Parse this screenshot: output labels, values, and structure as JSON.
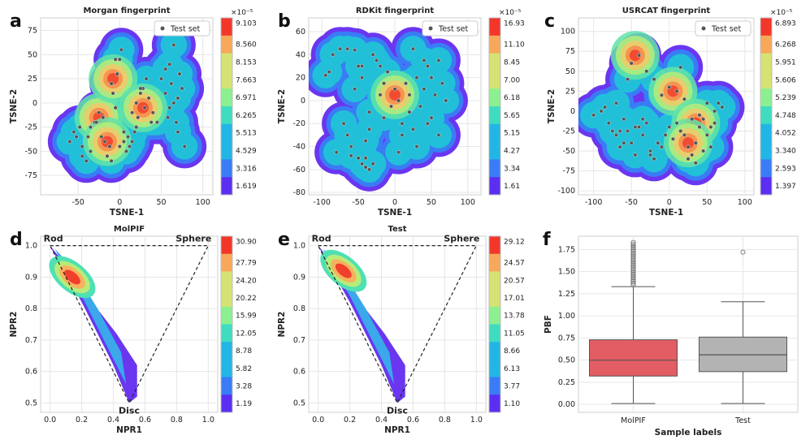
{
  "figure": {
    "panels": [
      {
        "id": "a",
        "type": "tsne",
        "label": "a",
        "title": "Morgan fingerprint",
        "xlabel": "TSNE-1",
        "ylabel": "TSNE-2",
        "xticks": [
          -50,
          0,
          50,
          100
        ],
        "yticks": [
          -75,
          -50,
          -25,
          0,
          25,
          50,
          75
        ],
        "xlim": [
          -95,
          112
        ],
        "ylim": [
          -95,
          88
        ],
        "legend": "Test set",
        "cb_exp": "×10⁻⁵",
        "cb_ticks": [
          "9.103",
          "8.560",
          "8.153",
          "7.663",
          "6.971",
          "6.265",
          "5.513",
          "4.529",
          "3.316",
          "1.619"
        ]
      },
      {
        "id": "b",
        "type": "tsne",
        "label": "b",
        "title": "RDKit fingerprint",
        "xlabel": "TSNE-1",
        "ylabel": "TSNE-2",
        "xticks": [
          -100,
          -50,
          0,
          50,
          100
        ],
        "yticks": [
          -80,
          -60,
          -40,
          -20,
          0,
          20,
          40,
          60
        ],
        "xlim": [
          -118,
          118
        ],
        "ylim": [
          -82,
          72
        ],
        "legend": "Test set",
        "cb_exp": "×10⁻⁵",
        "cb_ticks": [
          "16.93",
          "11.10",
          "8.45",
          "7.00",
          "6.18",
          "5.65",
          "5.15",
          "4.27",
          "3.34",
          "1.61"
        ]
      },
      {
        "id": "c",
        "type": "tsne",
        "label": "c",
        "title": "USRCAT fingerprint",
        "xlabel": "TSNE-1",
        "ylabel": "TSNE-2",
        "xticks": [
          -100,
          -50,
          0,
          50,
          100
        ],
        "yticks": [
          -100,
          -75,
          -50,
          -25,
          0,
          25,
          50,
          75,
          100
        ],
        "xlim": [
          -120,
          112
        ],
        "ylim": [
          -105,
          117
        ],
        "legend": "Test set",
        "cb_exp": "×10⁻⁵",
        "cb_ticks": [
          "6.893",
          "6.268",
          "5.951",
          "5.606",
          "5.239",
          "4.748",
          "4.052",
          "3.340",
          "2.593",
          "1.397"
        ]
      },
      {
        "id": "d",
        "type": "pmi",
        "label": "d",
        "title": "MolPIF",
        "xlabel": "NPR1",
        "ylabel": "NPR2",
        "xticks": [
          "0.0",
          "0.2",
          "0.4",
          "0.6",
          "0.8",
          "1.0"
        ],
        "yticks": [
          "0.5",
          "0.6",
          "0.7",
          "0.8",
          "0.9",
          "1.0"
        ],
        "xlim": [
          -0.06,
          1.06
        ],
        "ylim": [
          0.47,
          1.03
        ],
        "corners": {
          "rod": "Rod",
          "sphere": "Sphere",
          "disc": "Disc"
        },
        "cb_ticks": [
          "30.90",
          "27.79",
          "24.20",
          "20.22",
          "15.99",
          "12.05",
          "8.78",
          "5.82",
          "3.28",
          "1.19"
        ]
      },
      {
        "id": "e",
        "type": "pmi",
        "label": "e",
        "title": "Test",
        "xlabel": "NPR1",
        "ylabel": "NPR2",
        "xticks": [
          "0.0",
          "0.2",
          "0.4",
          "0.6",
          "0.8",
          "1.0"
        ],
        "yticks": [
          "0.5",
          "0.6",
          "0.7",
          "0.8",
          "0.9",
          "1.0"
        ],
        "xlim": [
          -0.06,
          1.06
        ],
        "ylim": [
          0.47,
          1.03
        ],
        "corners": {
          "rod": "Rod",
          "sphere": "Sphere",
          "disc": "Disc"
        },
        "cb_ticks": [
          "29.12",
          "24.57",
          "20.57",
          "17.01",
          "13.78",
          "11.05",
          "8.66",
          "6.13",
          "3.77",
          "1.10"
        ]
      },
      {
        "id": "f",
        "type": "box",
        "label": "f",
        "title": "",
        "xlabel": "Sample labels",
        "ylabel": "PBF",
        "yticks": [
          "0.00",
          "0.25",
          "0.50",
          "0.75",
          "1.00",
          "1.25",
          "1.50",
          "1.75"
        ],
        "ylim": [
          -0.09,
          1.9
        ]
      }
    ]
  },
  "chart_data": [
    {
      "type": "scatter",
      "panel": "a",
      "title": "Morgan fingerprint",
      "xlabel": "TSNE-1",
      "ylabel": "TSNE-2",
      "density_peaks": [
        [
          -25,
          -15
        ],
        [
          -15,
          -40
        ],
        [
          -8,
          25
        ],
        [
          28,
          -5
        ]
      ],
      "series": [
        {
          "name": "Test set",
          "x": [
            -60,
            -55,
            -48,
            -45,
            -40,
            -35,
            -30,
            -25,
            -22,
            -18,
            -15,
            -12,
            -10,
            -8,
            -5,
            -3,
            0,
            2,
            5,
            8,
            10,
            12,
            15,
            18,
            20,
            22,
            25,
            28,
            30,
            35,
            40,
            45,
            50,
            55,
            58,
            60,
            62,
            65,
            68,
            70,
            72,
            75,
            78,
            -38,
            -28,
            -20,
            -10,
            0,
            10,
            20,
            -5,
            5,
            15,
            55,
            60,
            65,
            70,
            -45,
            -52,
            -35,
            25,
            32,
            38
          ],
          "y": [
            -40,
            -30,
            -25,
            -45,
            -60,
            -50,
            -20,
            -10,
            -35,
            -40,
            -55,
            -45,
            20,
            10,
            -5,
            30,
            45,
            55,
            -30,
            -50,
            -35,
            -45,
            -40,
            -30,
            0,
            -15,
            10,
            15,
            -5,
            5,
            -10,
            -20,
            25,
            35,
            -15,
            40,
            20,
            60,
            -20,
            -30,
            30,
            15,
            -45,
            -35,
            -20,
            -15,
            -60,
            -45,
            -35,
            -25,
            45,
            -40,
            -10,
            10,
            -5,
            0,
            5,
            -55,
            -35,
            -25,
            15,
            25,
            -20
          ]
        }
      ]
    },
    {
      "type": "scatter",
      "panel": "b",
      "title": "RDKit fingerprint",
      "xlabel": "TSNE-1",
      "ylabel": "TSNE-2",
      "density_peaks": [
        [
          0,
          5
        ]
      ],
      "series": [
        {
          "name": "Test set",
          "x": [
            -95,
            -90,
            -85,
            -75,
            -70,
            -65,
            -60,
            -55,
            -50,
            -45,
            -40,
            -35,
            -30,
            -25,
            -20,
            -15,
            -10,
            -5,
            0,
            5,
            10,
            15,
            20,
            25,
            30,
            35,
            40,
            45,
            50,
            55,
            60,
            65,
            70,
            -80,
            -60,
            -50,
            -40,
            -30,
            -20,
            10,
            20,
            30,
            40,
            50,
            -65,
            -55,
            -45,
            -35,
            -15,
            5,
            25,
            45,
            60,
            -45,
            -40,
            -35
          ],
          "y": [
            22,
            25,
            40,
            45,
            -20,
            -30,
            -40,
            10,
            30,
            20,
            -35,
            -10,
            40,
            35,
            5,
            -15,
            25,
            -5,
            10,
            0,
            -20,
            15,
            5,
            -25,
            20,
            -5,
            10,
            30,
            -15,
            5,
            -30,
            15,
            0,
            -45,
            -48,
            -50,
            -50,
            -55,
            30,
            -30,
            -10,
            -40,
            35,
            20,
            45,
            44,
            30,
            -25,
            15,
            -45,
            45,
            -20,
            35,
            -55,
            -58,
            -60
          ]
        }
      ]
    },
    {
      "type": "scatter",
      "panel": "c",
      "title": "USRCAT fingerprint",
      "xlabel": "TSNE-1",
      "ylabel": "TSNE-2",
      "density_peaks": [
        [
          5,
          25
        ],
        [
          35,
          -15
        ],
        [
          -45,
          70
        ],
        [
          25,
          -40
        ]
      ],
      "series": [
        {
          "name": "Test set",
          "x": [
            -100,
            -90,
            -85,
            -80,
            -75,
            -70,
            -65,
            -60,
            -55,
            -50,
            -45,
            -40,
            -35,
            -30,
            -25,
            -20,
            -15,
            -10,
            -5,
            0,
            5,
            10,
            15,
            20,
            25,
            30,
            35,
            40,
            45,
            50,
            55,
            60,
            65,
            70,
            -50,
            -40,
            -30,
            -20,
            -10,
            0,
            10,
            20,
            30,
            40,
            50,
            60,
            -60,
            -45,
            -35,
            -25,
            15,
            25,
            35,
            45,
            55,
            -70,
            -55,
            -65
          ],
          "y": [
            -5,
            0,
            5,
            -15,
            -25,
            -30,
            -45,
            -10,
            -25,
            -40,
            -55,
            -20,
            -30,
            -15,
            -50,
            -60,
            -40,
            -45,
            -30,
            -20,
            -35,
            -15,
            -25,
            -30,
            -45,
            -55,
            -40,
            -20,
            -10,
            -30,
            -45,
            -15,
            10,
            5,
            60,
            70,
            50,
            40,
            20,
            30,
            25,
            15,
            -10,
            -5,
            10,
            0,
            -40,
            -20,
            -10,
            -55,
            55,
            -60,
            -65,
            -50,
            -20,
            10,
            40,
            -25
          ]
        }
      ]
    },
    {
      "type": "heatmap",
      "panel": "d",
      "title": "MolPIF",
      "xlabel": "NPR1",
      "ylabel": "NPR2",
      "peak": [
        0.14,
        0.9
      ],
      "triangle": [
        [
          0,
          1
        ],
        [
          1,
          1
        ],
        [
          0.5,
          0.5
        ]
      ]
    },
    {
      "type": "heatmap",
      "panel": "e",
      "title": "Test",
      "xlabel": "NPR1",
      "ylabel": "NPR2",
      "peak": [
        0.16,
        0.92
      ],
      "triangle": [
        [
          0,
          1
        ],
        [
          1,
          1
        ],
        [
          0.5,
          0.5
        ]
      ]
    },
    {
      "type": "box",
      "panel": "f",
      "xlabel": "Sample labels",
      "ylabel": "PBF",
      "categories": [
        "MolPIF",
        "Test"
      ],
      "series": [
        {
          "name": "MolPIF",
          "color": "#e35d64",
          "whislo": 0.01,
          "q1": 0.32,
          "med": 0.5,
          "q3": 0.73,
          "whishi": 1.33,
          "fliers_low": 1.35,
          "fliers_high": 1.84
        },
        {
          "name": "Test",
          "color": "#b3b3b3",
          "whislo": 0.01,
          "q1": 0.37,
          "med": 0.56,
          "q3": 0.76,
          "whishi": 1.16,
          "fliers": [
            1.72
          ]
        }
      ]
    }
  ]
}
